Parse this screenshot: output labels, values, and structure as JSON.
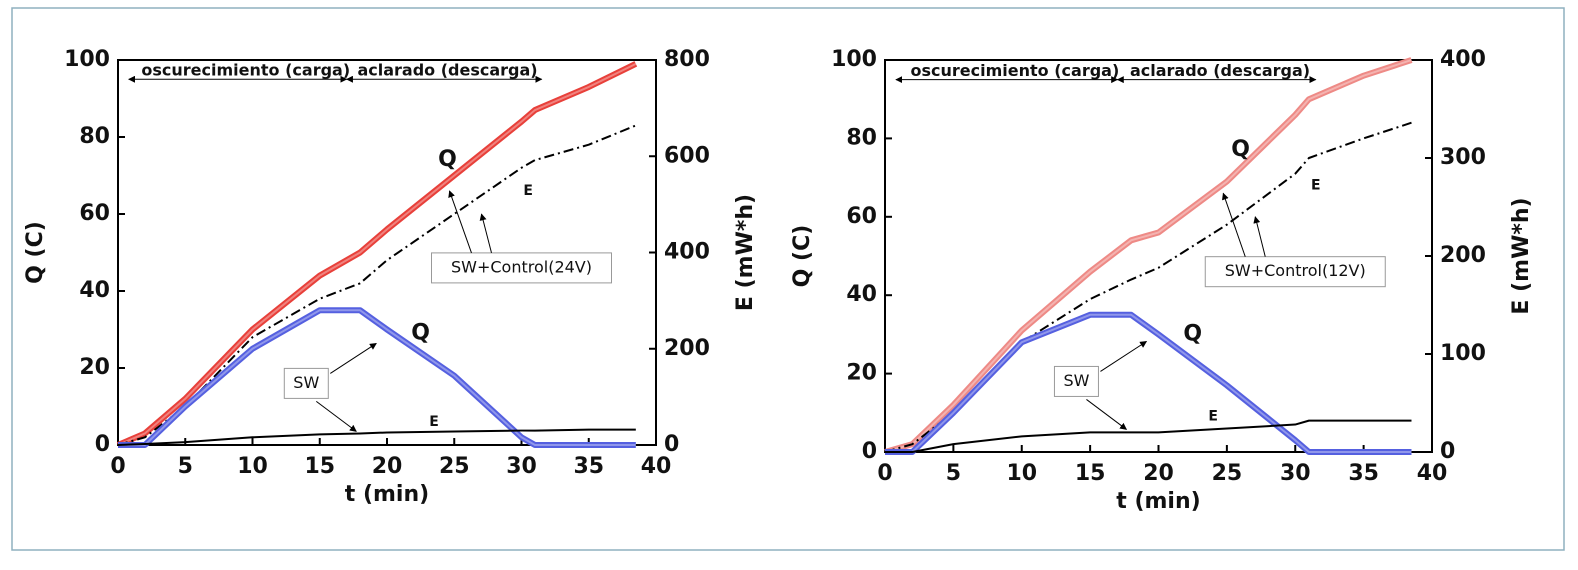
{
  "chart_data": [
    {
      "type": "line",
      "x": [
        0,
        2,
        5,
        10,
        15,
        18,
        20,
        25,
        30,
        31,
        35,
        38.5
      ],
      "xlim": [
        0,
        40
      ],
      "xticks": [
        0,
        5,
        10,
        15,
        20,
        25,
        30,
        35,
        40
      ],
      "ylim": [
        0,
        100
      ],
      "yticks": [
        0,
        20,
        40,
        60,
        80,
        100
      ],
      "y2lim": [
        0,
        800
      ],
      "y2ticks": [
        0,
        200,
        400,
        600,
        800
      ],
      "xlabel": "t (min)",
      "ylabel": "Q (C)",
      "y2label": "E (mW*h)",
      "annotations": [
        "oscurecimiento (carga)",
        "aclarado (descarga)",
        "SW+Control(24V)",
        "SW"
      ],
      "series": [
        {
          "name": "Q",
          "color": "#e8403a",
          "style": "thick",
          "values": [
            0,
            3,
            12,
            30,
            44,
            50,
            56,
            70,
            84,
            87,
            93,
            99
          ]
        },
        {
          "name": "E",
          "color": "#000000",
          "style": "dashdot",
          "axis": "y2",
          "values": [
            0,
            16,
            80,
            224,
            304,
            336,
            384,
            480,
            576,
            592,
            624,
            664
          ]
        },
        {
          "name": "Q",
          "color": "#5560e0",
          "style": "thick",
          "values": [
            0,
            0,
            10,
            25,
            35,
            35,
            30,
            18,
            2,
            0,
            0,
            0
          ]
        },
        {
          "name": "E",
          "color": "#000000",
          "style": "solid",
          "axis": "y2",
          "values": [
            0,
            2,
            6,
            16,
            22,
            24,
            26,
            28,
            30,
            30,
            32,
            32
          ]
        }
      ]
    },
    {
      "type": "line",
      "x": [
        0,
        2,
        5,
        10,
        15,
        18,
        20,
        25,
        30,
        31,
        35,
        38.5
      ],
      "xlim": [
        0,
        40
      ],
      "xticks": [
        0,
        5,
        10,
        15,
        20,
        25,
        30,
        35,
        40
      ],
      "ylim": [
        0,
        100
      ],
      "yticks": [
        0,
        20,
        40,
        60,
        80,
        100
      ],
      "y2lim": [
        0,
        400
      ],
      "y2ticks": [
        0,
        100,
        200,
        300,
        400
      ],
      "xlabel": "t (min)",
      "ylabel": "Q (C)",
      "y2label": "E (mW*h)",
      "annotations": [
        "oscurecimiento (carga)",
        "aclarado (descarga)",
        "SW+Control(12V)",
        "SW"
      ],
      "series": [
        {
          "name": "Q",
          "color": "#ee8a86",
          "style": "thick",
          "values": [
            0,
            2,
            12,
            31,
            46,
            54,
            56,
            69,
            86,
            90,
            96,
            100
          ]
        },
        {
          "name": "E",
          "color": "#000000",
          "style": "dashdot",
          "axis": "y2",
          "values": [
            0,
            8,
            40,
            112,
            156,
            176,
            188,
            232,
            284,
            300,
            320,
            336
          ]
        },
        {
          "name": "Q",
          "color": "#5560e0",
          "style": "thick",
          "values": [
            0,
            0,
            10,
            28,
            35,
            35,
            30,
            17,
            3,
            0,
            0,
            0
          ]
        },
        {
          "name": "E",
          "color": "#000000",
          "style": "solid",
          "axis": "y2",
          "values": [
            0,
            0,
            8,
            16,
            20,
            20,
            20,
            24,
            28,
            32,
            32,
            32
          ]
        }
      ]
    }
  ]
}
